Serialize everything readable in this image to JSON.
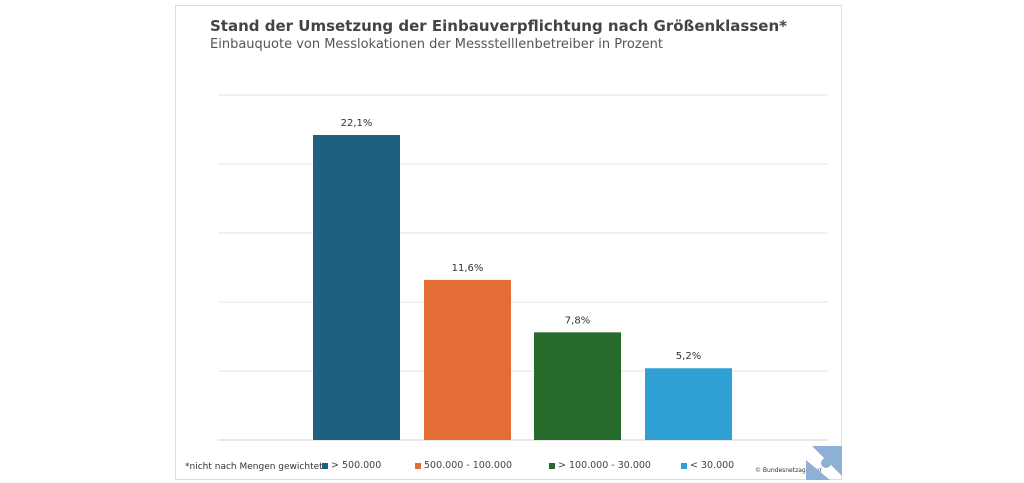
{
  "chart_data": {
    "type": "bar",
    "title": "Stand der Umsetzung der Einbauverpflichtung nach Größenklassen*",
    "subtitle": "Einbauquote von Messlokationen der Messstelllenbetreiber in Prozent",
    "categories": [
      "> 500.000",
      "500.000 - 100.000",
      "> 100.000 - 30.000",
      "< 30.000"
    ],
    "values": [
      22.1,
      11.6,
      7.8,
      5.2
    ],
    "data_labels": [
      "22,1%",
      "11,6%",
      "7,8%",
      "5,2%"
    ],
    "colors": [
      "#1f5f7f",
      "#e46d36",
      "#266b2b",
      "#2ea0d4"
    ],
    "ylim": [
      0,
      25
    ],
    "yticks": [
      0,
      5,
      10,
      15,
      20,
      25
    ],
    "grid": true,
    "legend_position": "bottom",
    "footnote": "*nicht nach Mengen gewichtet",
    "copyright": "© Bundesnetzagentur"
  }
}
